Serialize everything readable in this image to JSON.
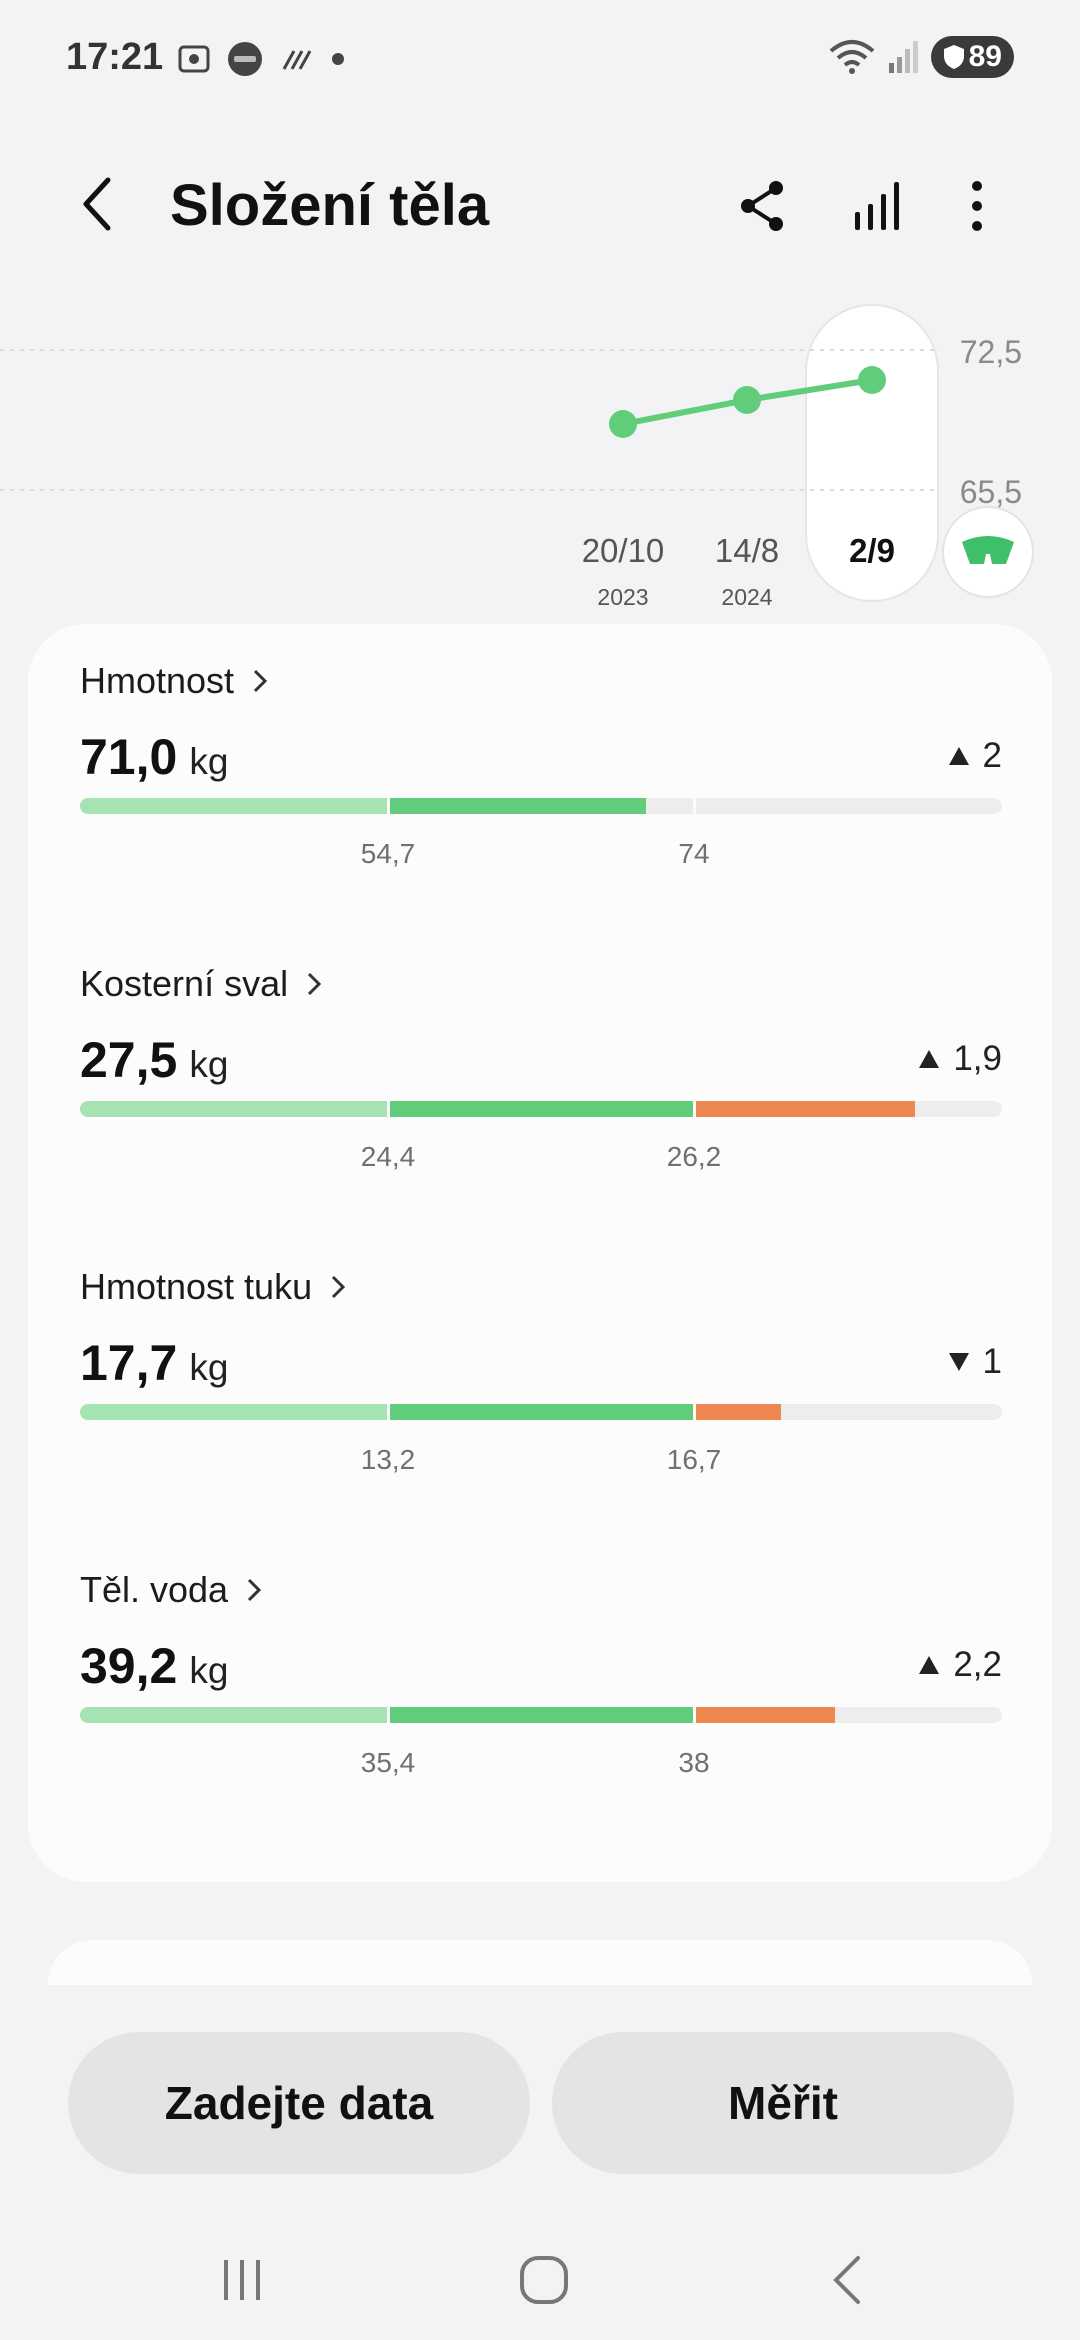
{
  "status_bar": {
    "time": "17:21",
    "battery": "89"
  },
  "header": {
    "title": "Složení těla"
  },
  "chart_data": {
    "type": "line",
    "x": [
      "20/10 2023",
      "14/8 2024",
      "2/9"
    ],
    "x_labels": [
      {
        "date": "20/10",
        "year": "2023"
      },
      {
        "date": "14/8",
        "year": "2024"
      },
      {
        "date": "2/9",
        "year": ""
      }
    ],
    "series": [
      {
        "values": [
          68.8,
          70.0,
          71.0
        ]
      }
    ],
    "y_ticks": [
      "72,5",
      "65,5"
    ],
    "ylim": [
      65.5,
      72.5
    ],
    "selected_index": 2,
    "color": "#61cd7b"
  },
  "metrics": [
    {
      "name": "Hmotnost",
      "value": "71,0",
      "unit": "kg",
      "change": "2",
      "direction": "up",
      "range_low": "54,7",
      "range_high": "74",
      "scale_min": 30,
      "scale_max": 100,
      "value_num": 71.0,
      "range_low_num": 54.7,
      "range_high_num": 74
    },
    {
      "name": "Kosterní sval",
      "value": "27,5",
      "unit": "kg",
      "change": "1,9",
      "direction": "up",
      "range_low": "24,4",
      "range_high": "26,2",
      "value_num": 27.5,
      "range_low_num": 24.4,
      "range_high_num": 26.2
    },
    {
      "name": "Hmotnost tuku",
      "value": "17,7",
      "unit": "kg",
      "change": "1",
      "direction": "down",
      "range_low": "13,2",
      "range_high": "16,7",
      "value_num": 17.7,
      "range_low_num": 13.2,
      "range_high_num": 16.7
    },
    {
      "name": "Těl. voda",
      "value": "39,2",
      "unit": "kg",
      "change": "2,2",
      "direction": "up",
      "range_low": "35,4",
      "range_high": "38",
      "value_num": 39.2,
      "range_low_num": 35.4,
      "range_high_num": 38
    }
  ],
  "buttons": {
    "enter_data": "Zadejte data",
    "measure": "Měřit"
  },
  "colors": {
    "low": "#a6e3b2",
    "normal": "#61cd7b",
    "high": "#ef8850",
    "background": "#f3f3f5"
  }
}
